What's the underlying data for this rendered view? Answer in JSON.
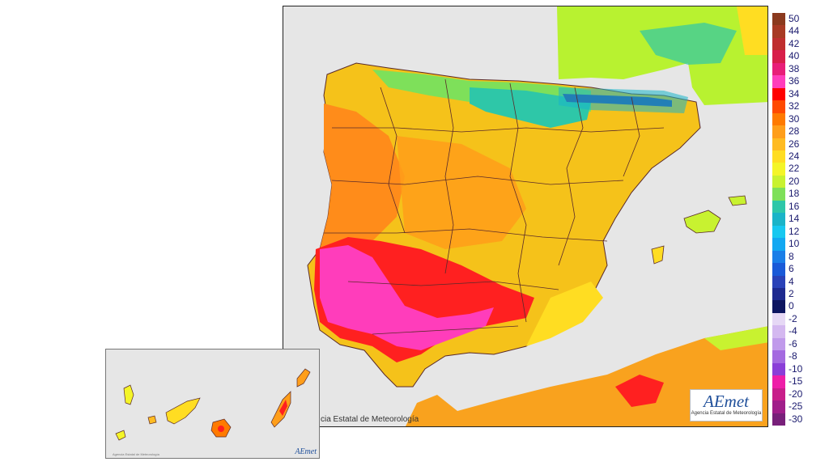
{
  "map": {
    "credit": "cia Estatal de Meteorología",
    "logo": "AEmet",
    "logo_subtitle": "Agencia Estatal de Meteorología",
    "regions": {
      "sea": "#e6e6e6",
      "iberia_base": "#f5c21a",
      "north_coast": "#2ec7a8",
      "pyrenees": "#2d3fa0",
      "west_coast": "#ff8c1a",
      "southwest_hot": "#ff2020",
      "guadalquivir": "#ff3dbb",
      "africa": "#f9a21e",
      "france": "#b8f230",
      "borders": "#5a2a2a"
    }
  },
  "canary_inset": {
    "logo": "AEmet",
    "note": "Agencia Estatal de Meteorología"
  },
  "legend": {
    "entries": [
      {
        "label": "50",
        "color": "#8b3a1e"
      },
      {
        "label": "44",
        "color": "#a83a24"
      },
      {
        "label": "42",
        "color": "#bf2e2e"
      },
      {
        "label": "40",
        "color": "#d81e4a"
      },
      {
        "label": "38",
        "color": "#e81e78"
      },
      {
        "label": "36",
        "color": "#ff3dbb"
      },
      {
        "label": "34",
        "color": "#ff0000"
      },
      {
        "label": "32",
        "color": "#ff4a00"
      },
      {
        "label": "30",
        "color": "#ff7a00"
      },
      {
        "label": "28",
        "color": "#ff9e1a"
      },
      {
        "label": "26",
        "color": "#ffbb22"
      },
      {
        "label": "24",
        "color": "#ffdd22"
      },
      {
        "label": "22",
        "color": "#f4f528"
      },
      {
        "label": "20",
        "color": "#c8f230"
      },
      {
        "label": "18",
        "color": "#7ee05a"
      },
      {
        "label": "16",
        "color": "#2ec7a8"
      },
      {
        "label": "14",
        "color": "#1ab4c8"
      },
      {
        "label": "12",
        "color": "#17c8f0"
      },
      {
        "label": "10",
        "color": "#12a8f2"
      },
      {
        "label": "8",
        "color": "#1a7ee8"
      },
      {
        "label": "6",
        "color": "#1a5ad8"
      },
      {
        "label": "4",
        "color": "#2a42b8"
      },
      {
        "label": "2",
        "color": "#1e2a90"
      },
      {
        "label": "0",
        "color": "#0d1560"
      },
      {
        "label": "-2",
        "color": "#e6d8f5"
      },
      {
        "label": "-4",
        "color": "#d4b8f0"
      },
      {
        "label": "-6",
        "color": "#c09aeb"
      },
      {
        "label": "-8",
        "color": "#a46ae0"
      },
      {
        "label": "-10",
        "color": "#8a3ed8"
      },
      {
        "label": "-15",
        "color": "#ee1ea8"
      },
      {
        "label": "-20",
        "color": "#c81e8a"
      },
      {
        "label": "-25",
        "color": "#a01e8a"
      },
      {
        "label": "-30",
        "color": "#78207a"
      }
    ]
  }
}
